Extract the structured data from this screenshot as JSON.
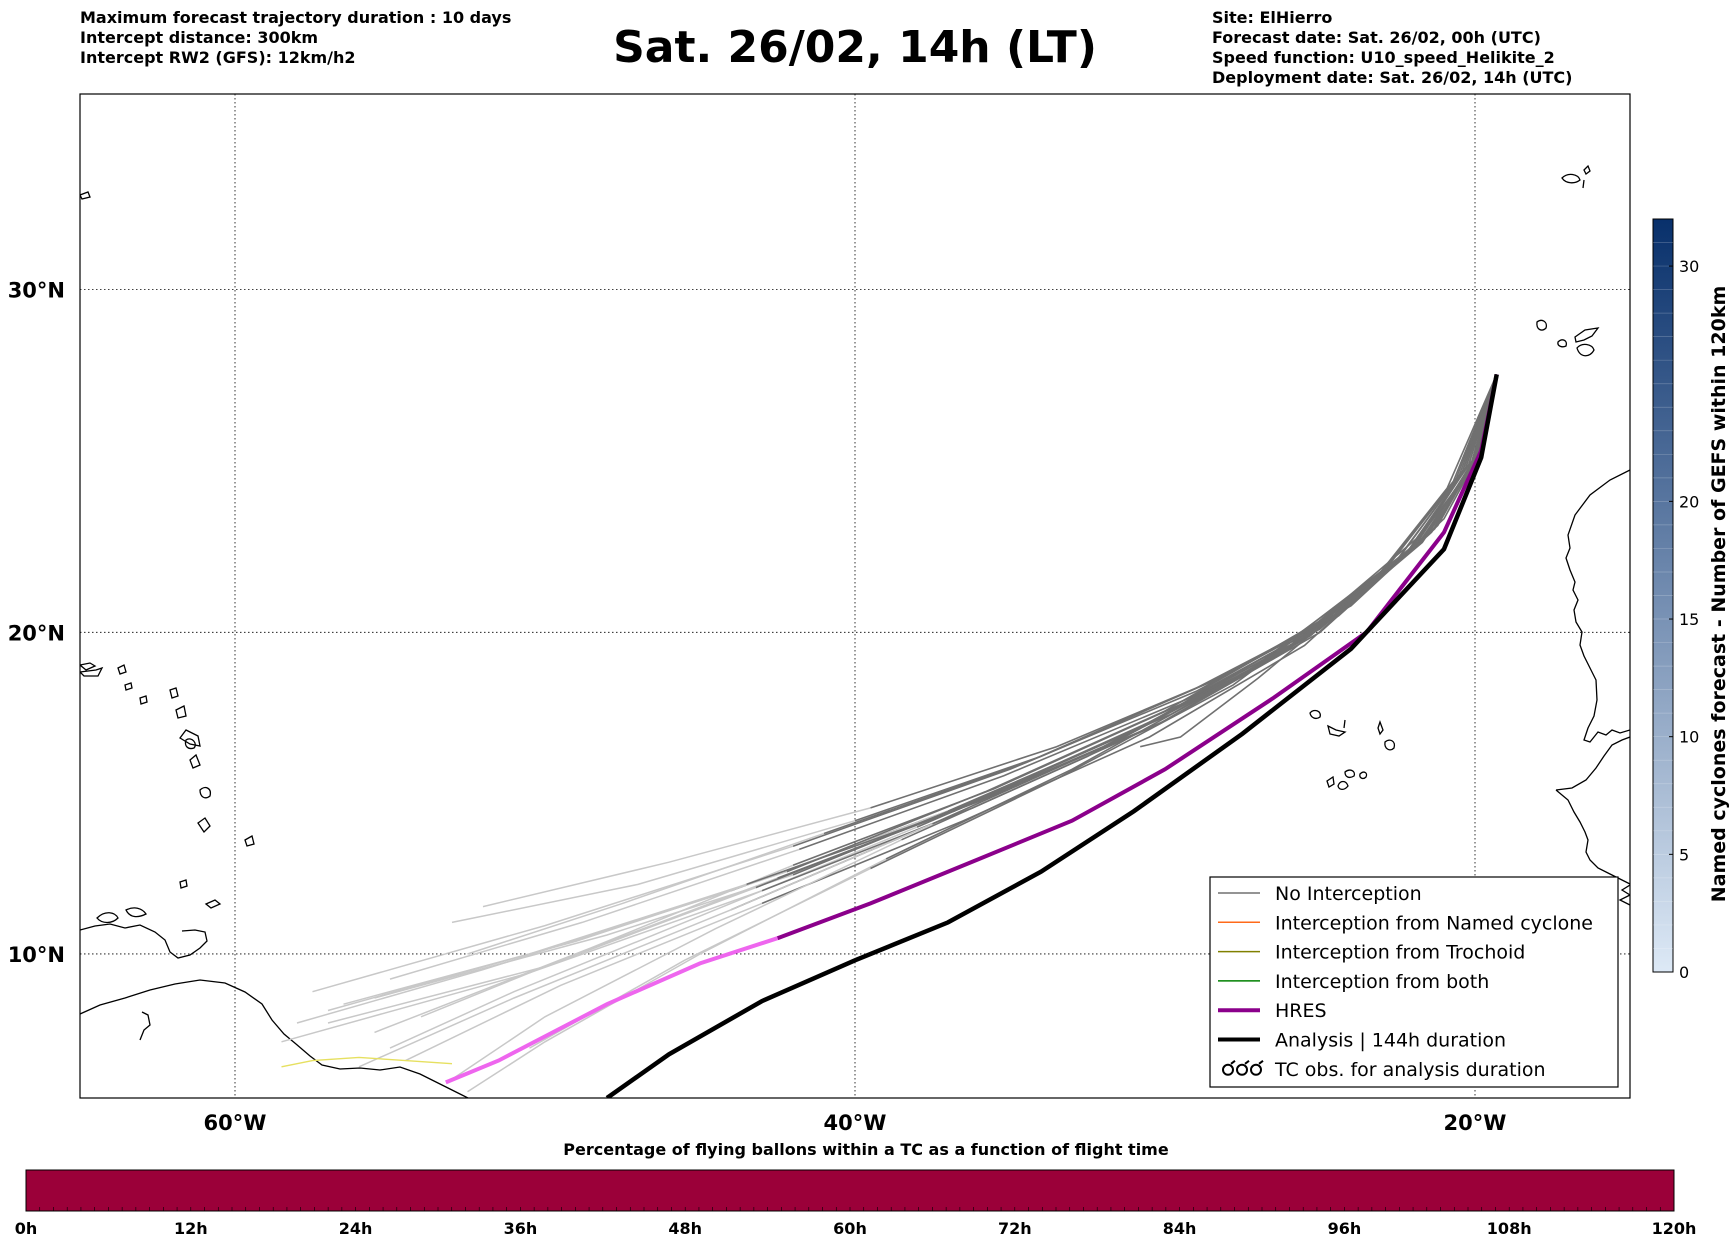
{
  "header": {
    "left_lines": [
      "Maximum forecast trajectory duration : 10 days",
      "Intercept distance: 300km",
      "Intercept RW2 (GFS):  12km/h2"
    ],
    "right_lines": [
      "Site: ElHierro",
      "Forecast date: Sat. 26/02, 00h (UTC)",
      "Speed function: U10_speed_Helikite_2",
      "Deployment date: Sat. 26/02, 14h (UTC)"
    ],
    "title": "Sat. 26/02, 14h (LT)"
  },
  "map": {
    "extent": {
      "lon_min": -65,
      "lon_max": -15,
      "lat_min": 5.4,
      "lat_max": 35.3
    },
    "lat_ticks": [
      {
        "lat": 30,
        "label": "30°N"
      },
      {
        "lat": 20,
        "label": "20°N"
      },
      {
        "lat": 10,
        "label": "10°N"
      }
    ],
    "lon_ticks": [
      {
        "lon": -60,
        "label": "60°W"
      },
      {
        "lon": -40,
        "label": "40°W"
      },
      {
        "lon": -20,
        "label": "20°W"
      }
    ],
    "colors": {
      "no_interception": "#707070",
      "no_interception_light": "#c8c8c8",
      "named_cyclone": "#ff6a1a",
      "trochoid": "#808000",
      "both": "#008000",
      "hres": "#8b008b",
      "hres_light": "#ee66ee",
      "analysis": "#000000"
    },
    "hres_track": [
      [
        -19.3,
        27.6
      ],
      [
        -19.8,
        25.4
      ],
      [
        -21.0,
        23.0
      ],
      [
        -23.5,
        20.0
      ],
      [
        -26.5,
        18.0
      ],
      [
        -30.0,
        15.8
      ],
      [
        -33.0,
        14.2
      ],
      [
        -36.0,
        13.0
      ],
      [
        -39.5,
        11.6
      ],
      [
        -42.5,
        10.5
      ],
      [
        -45.0,
        9.7
      ],
      [
        -48.0,
        8.4
      ],
      [
        -51.5,
        6.6
      ],
      [
        -53.2,
        5.9
      ]
    ],
    "analysis_track": [
      [
        -19.3,
        27.6
      ],
      [
        -19.8,
        25.2
      ],
      [
        -21.0,
        22.5
      ],
      [
        -24.0,
        19.5
      ],
      [
        -27.5,
        16.9
      ],
      [
        -31.0,
        14.5
      ],
      [
        -34.0,
        12.6
      ],
      [
        -37.0,
        11.0
      ],
      [
        -40.0,
        9.8
      ],
      [
        -43.0,
        8.5
      ],
      [
        -46.0,
        6.8
      ],
      [
        -48.0,
        5.4
      ]
    ],
    "ensemble_tracks": [
      [
        [
          -19.3,
          27.6
        ],
        [
          -20.2,
          25.0
        ],
        [
          -22.0,
          22.5
        ],
        [
          -26.0,
          19.5
        ],
        [
          -31.0,
          17.0
        ],
        [
          -37.0,
          14.5
        ],
        [
          -44.0,
          12.0
        ],
        [
          -52.0,
          9.5
        ],
        [
          -58.0,
          7.8
        ]
      ],
      [
        [
          -19.3,
          27.6
        ],
        [
          -20.0,
          25.2
        ],
        [
          -21.5,
          23.0
        ],
        [
          -24.5,
          20.5
        ],
        [
          -29.0,
          18.2
        ],
        [
          -35.0,
          15.8
        ],
        [
          -42.0,
          13.4
        ],
        [
          -50.0,
          10.9
        ],
        [
          -57.5,
          8.8
        ]
      ],
      [
        [
          -19.3,
          27.6
        ],
        [
          -20.4,
          24.8
        ],
        [
          -22.5,
          22.2
        ],
        [
          -26.5,
          19.2
        ],
        [
          -32.0,
          16.5
        ],
        [
          -38.0,
          14.0
        ],
        [
          -45.0,
          11.2
        ],
        [
          -51.0,
          8.8
        ],
        [
          -55.0,
          7.0
        ]
      ],
      [
        [
          -19.3,
          27.6
        ],
        [
          -19.9,
          25.3
        ],
        [
          -21.2,
          23.2
        ],
        [
          -24.0,
          20.8
        ],
        [
          -28.5,
          18.5
        ],
        [
          -34.0,
          16.2
        ],
        [
          -40.0,
          14.2
        ],
        [
          -47.0,
          12.2
        ],
        [
          -53.0,
          11.0
        ]
      ],
      [
        [
          -19.3,
          27.6
        ],
        [
          -20.1,
          25.0
        ],
        [
          -21.8,
          22.7
        ],
        [
          -25.0,
          20.0
        ],
        [
          -30.0,
          17.3
        ],
        [
          -36.0,
          14.8
        ],
        [
          -42.5,
          12.4
        ],
        [
          -49.0,
          10.0
        ],
        [
          -54.0,
          8.0
        ]
      ],
      [
        [
          -19.3,
          27.6
        ],
        [
          -20.3,
          24.9
        ],
        [
          -22.2,
          22.4
        ],
        [
          -25.5,
          19.6
        ],
        [
          -30.5,
          16.8
        ],
        [
          -36.5,
          14.2
        ],
        [
          -43.0,
          11.6
        ],
        [
          -49.5,
          9.0
        ],
        [
          -54.5,
          6.6
        ]
      ],
      [
        [
          -19.3,
          27.6
        ],
        [
          -19.8,
          25.4
        ],
        [
          -21.0,
          23.4
        ],
        [
          -23.8,
          21.0
        ],
        [
          -28.0,
          18.7
        ],
        [
          -33.5,
          16.5
        ],
        [
          -39.5,
          14.6
        ],
        [
          -46.0,
          12.9
        ],
        [
          -52.0,
          11.5
        ]
      ],
      [
        [
          -19.3,
          27.6
        ],
        [
          -20.5,
          24.7
        ],
        [
          -22.8,
          22.0
        ],
        [
          -27.0,
          19.0
        ],
        [
          -32.5,
          16.2
        ],
        [
          -38.5,
          13.6
        ],
        [
          -44.5,
          10.8
        ],
        [
          -50.0,
          8.0
        ],
        [
          -53.0,
          6.0
        ]
      ],
      [
        [
          -19.3,
          27.6
        ],
        [
          -20.0,
          25.1
        ],
        [
          -21.6,
          22.9
        ],
        [
          -24.8,
          20.3
        ],
        [
          -29.5,
          17.8
        ],
        [
          -35.5,
          15.2
        ],
        [
          -42.0,
          12.8
        ],
        [
          -48.5,
          10.2
        ],
        [
          -55.5,
          7.5
        ]
      ],
      [
        [
          -19.3,
          27.6
        ],
        [
          -20.2,
          25.0
        ],
        [
          -22.0,
          22.6
        ],
        [
          -25.3,
          19.9
        ],
        [
          -30.2,
          17.2
        ],
        [
          -36.2,
          14.6
        ],
        [
          -43.0,
          12.0
        ],
        [
          -50.5,
          9.4
        ],
        [
          -58.5,
          7.2
        ]
      ],
      [
        [
          -19.3,
          27.6
        ],
        [
          -20.6,
          24.6
        ],
        [
          -23.0,
          21.8
        ],
        [
          -27.5,
          18.7
        ],
        [
          -33.0,
          15.8
        ],
        [
          -39.0,
          13.0
        ],
        [
          -45.0,
          10.0
        ],
        [
          -50.0,
          7.2
        ],
        [
          -52.5,
          5.6
        ]
      ],
      [
        [
          -19.3,
          27.6
        ],
        [
          -19.9,
          25.3
        ],
        [
          -21.3,
          23.1
        ],
        [
          -24.3,
          20.6
        ],
        [
          -29.0,
          18.3
        ],
        [
          -34.5,
          16.0
        ],
        [
          -41.0,
          13.8
        ],
        [
          -47.5,
          11.6
        ],
        [
          -52.5,
          10.0
        ]
      ],
      [
        [
          -19.3,
          27.6
        ],
        [
          -20.1,
          25.1
        ],
        [
          -21.9,
          22.8
        ],
        [
          -25.2,
          20.2
        ],
        [
          -30.0,
          17.6
        ],
        [
          -35.8,
          15.1
        ],
        [
          -42.2,
          12.6
        ],
        [
          -49.0,
          10.4
        ],
        [
          -56.5,
          8.4
        ]
      ],
      [
        [
          -19.3,
          27.6
        ],
        [
          -20.4,
          24.8
        ],
        [
          -22.4,
          22.3
        ],
        [
          -26.2,
          19.4
        ],
        [
          -31.5,
          16.7
        ],
        [
          -37.5,
          14.1
        ],
        [
          -44.0,
          11.4
        ],
        [
          -51.0,
          8.6
        ],
        [
          -56.0,
          6.4
        ]
      ],
      [
        [
          -19.3,
          27.6
        ],
        [
          -20.0,
          25.2
        ],
        [
          -21.4,
          23.0
        ],
        [
          -24.4,
          20.5
        ],
        [
          -29.2,
          18.0
        ],
        [
          -35.2,
          15.6
        ],
        [
          -41.8,
          13.3
        ],
        [
          -48.8,
          11.0
        ],
        [
          -55.0,
          9.2
        ]
      ],
      [
        [
          -19.3,
          27.6
        ],
        [
          -20.3,
          24.9
        ],
        [
          -22.1,
          22.5
        ],
        [
          -25.6,
          19.8
        ],
        [
          -30.8,
          17.1
        ],
        [
          -36.8,
          14.5
        ],
        [
          -43.5,
          12.2
        ],
        [
          -50.5,
          10.0
        ],
        [
          -57.0,
          8.2
        ]
      ],
      [
        [
          -19.3,
          27.6
        ],
        [
          -20.7,
          24.5
        ],
        [
          -23.2,
          21.6
        ],
        [
          -27.8,
          18.4
        ],
        [
          -33.5,
          15.5
        ],
        [
          -39.5,
          12.7
        ],
        [
          -45.5,
          9.8
        ],
        [
          -50.5,
          7.0
        ]
      ],
      [
        [
          -19.3,
          27.6
        ],
        [
          -20.0,
          25.0
        ],
        [
          -21.7,
          22.7
        ],
        [
          -25.0,
          20.1
        ],
        [
          -29.8,
          17.5
        ],
        [
          -35.7,
          15.0
        ],
        [
          -42.0,
          12.5
        ],
        [
          -48.0,
          10.6
        ],
        [
          -55.5,
          8.6
        ]
      ],
      [
        [
          -19.3,
          27.6
        ],
        [
          -20.9,
          24.3
        ],
        [
          -23.4,
          21.4
        ],
        [
          -27.0,
          18.6
        ],
        [
          -29.5,
          16.8
        ],
        [
          -30.8,
          16.5
        ]
      ],
      [
        [
          -19.3,
          27.6
        ],
        [
          -20.1,
          24.9
        ],
        [
          -22.0,
          22.6
        ],
        [
          -25.4,
          19.9
        ],
        [
          -30.4,
          17.3
        ],
        [
          -36.4,
          14.7
        ],
        [
          -43.2,
          12.1
        ],
        [
          -50.0,
          9.6
        ],
        [
          -57.0,
          7.8
        ]
      ]
    ],
    "yellow_track": [
      [
        -53.0,
        6.5
      ],
      [
        -54.5,
        6.6
      ],
      [
        -56.0,
        6.7
      ],
      [
        -57.5,
        6.6
      ],
      [
        -58.5,
        6.4
      ]
    ]
  },
  "legend": {
    "items": [
      {
        "key": "no_interception",
        "label": "No Interception",
        "style": "thin"
      },
      {
        "key": "named_cyclone",
        "label": "Interception from Named cyclone",
        "style": "thin"
      },
      {
        "key": "trochoid",
        "label": "Interception from Trochoid",
        "style": "thin"
      },
      {
        "key": "both",
        "label": "Interception from both",
        "style": "thin"
      },
      {
        "key": "hres",
        "label": "HRES",
        "style": "thick"
      },
      {
        "key": "analysis",
        "label": "Analysis | 144h duration",
        "style": "thick"
      },
      {
        "key": "tc_obs",
        "label": "TC obs. for analysis duration",
        "style": "symbol"
      }
    ]
  },
  "colorbar_gefs": {
    "label": "Named cyclones forecast - Number of GEFS within 120km",
    "ticks": [
      0,
      5,
      10,
      15,
      20,
      30
    ],
    "min": 0,
    "max": 32,
    "color_low": "#dde9f6",
    "color_high": "#08306b"
  },
  "colorbar_flight": {
    "title": "Percentage of flying ballons within a TC as a function of flight time",
    "hour_labels": [
      "0h",
      "12h",
      "24h",
      "36h",
      "48h",
      "60h",
      "72h",
      "84h",
      "96h",
      "108h",
      "120h"
    ],
    "fill_color": "#9b0039"
  }
}
